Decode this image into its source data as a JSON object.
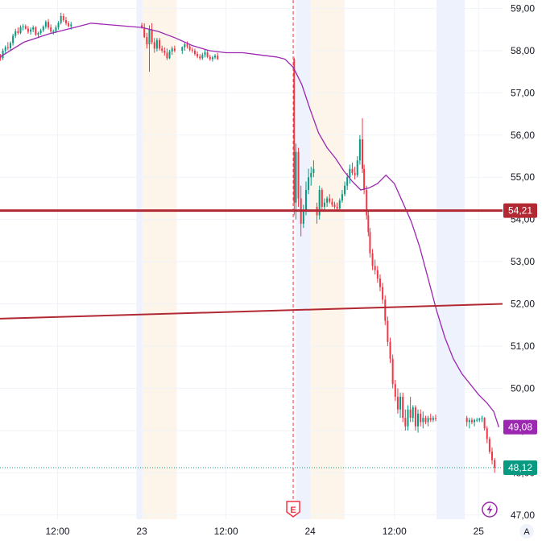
{
  "chart_data": {
    "type": "candlestick",
    "y_axis": {
      "ticks": [
        "59,00",
        "58,00",
        "57,00",
        "56,00",
        "55,00",
        "54,00",
        "53,00",
        "52,00",
        "51,00",
        "50,00",
        "49,00",
        "48,00",
        "47,00"
      ],
      "tick_values": [
        59,
        58,
        57,
        56,
        55,
        54,
        53,
        52,
        51,
        50,
        49,
        48,
        47
      ],
      "range": [
        46.9,
        59.2
      ]
    },
    "x_axis": {
      "labels": [
        "12:00",
        "23",
        "12:00",
        "24",
        "12:00",
        "25"
      ],
      "times": [
        0.5,
        1,
        1.5,
        2,
        2.5,
        3
      ],
      "range": [
        0.158,
        3.142
      ]
    },
    "sessions": [
      {
        "type": "premarket",
        "from": 0.968,
        "to": 1.004,
        "color": "#eef2fd"
      },
      {
        "type": "postmarket",
        "from": 1.004,
        "to": 1.208,
        "color": "#fdf5ea"
      },
      {
        "type": "premarket",
        "from": 1.915,
        "to": 2.0,
        "color": "#eef2fd"
      },
      {
        "type": "postmarket",
        "from": 2.0,
        "to": 2.204,
        "color": "#fdf5ea"
      },
      {
        "type": "premarket",
        "from": 2.75,
        "to": 2.918,
        "color": "#eef2fd"
      }
    ],
    "candles": [
      [
        0.16,
        57.85,
        57.92,
        57.76,
        57.82
      ],
      [
        0.175,
        57.82,
        58.05,
        57.78,
        58.0
      ],
      [
        0.19,
        58.0,
        58.12,
        57.95,
        58.08
      ],
      [
        0.205,
        58.08,
        58.2,
        58.01,
        58.06
      ],
      [
        0.22,
        58.06,
        58.22,
        58.0,
        58.18
      ],
      [
        0.235,
        58.18,
        58.4,
        58.12,
        58.35
      ],
      [
        0.25,
        58.35,
        58.52,
        58.3,
        58.46
      ],
      [
        0.265,
        58.46,
        58.55,
        58.38,
        58.42
      ],
      [
        0.28,
        58.42,
        58.6,
        58.39,
        58.56
      ],
      [
        0.295,
        58.56,
        58.63,
        58.48,
        58.58
      ],
      [
        0.31,
        58.58,
        58.62,
        58.5,
        58.52
      ],
      [
        0.325,
        58.52,
        58.58,
        58.4,
        58.45
      ],
      [
        0.34,
        58.45,
        58.55,
        58.38,
        58.5
      ],
      [
        0.355,
        58.5,
        58.6,
        58.44,
        58.55
      ],
      [
        0.37,
        58.55,
        58.58,
        58.35,
        58.38
      ],
      [
        0.385,
        58.38,
        58.45,
        58.3,
        58.42
      ],
      [
        0.4,
        58.42,
        58.52,
        58.38,
        58.48
      ],
      [
        0.415,
        58.48,
        58.6,
        58.44,
        58.57
      ],
      [
        0.43,
        58.57,
        58.72,
        58.52,
        58.68
      ],
      [
        0.445,
        58.68,
        58.75,
        58.5,
        58.55
      ],
      [
        0.46,
        58.55,
        58.62,
        58.42,
        58.45
      ],
      [
        0.475,
        58.45,
        58.5,
        58.38,
        58.46
      ],
      [
        0.49,
        58.46,
        58.6,
        58.42,
        58.55
      ],
      [
        0.505,
        58.55,
        58.7,
        58.5,
        58.66
      ],
      [
        0.52,
        58.66,
        58.9,
        58.62,
        58.82
      ],
      [
        0.535,
        58.82,
        58.88,
        58.68,
        58.72
      ],
      [
        0.55,
        58.72,
        58.8,
        58.6,
        58.65
      ],
      [
        0.565,
        58.65,
        58.7,
        58.55,
        58.58
      ],
      [
        0.58,
        58.58,
        58.68,
        58.5,
        58.62
      ],
      [
        1.0,
        58.6,
        58.66,
        58.52,
        58.55
      ],
      [
        1.015,
        58.55,
        58.65,
        58.3,
        58.32
      ],
      [
        1.03,
        58.32,
        58.42,
        58.05,
        58.15
      ],
      [
        1.045,
        58.15,
        58.6,
        57.5,
        58.5
      ],
      [
        1.06,
        58.5,
        58.65,
        58.15,
        58.2
      ],
      [
        1.075,
        58.2,
        58.3,
        57.95,
        58.05
      ],
      [
        1.09,
        58.05,
        58.3,
        57.98,
        58.25
      ],
      [
        1.105,
        58.25,
        58.3,
        58.0,
        58.05
      ],
      [
        1.12,
        58.05,
        58.12,
        57.95,
        58.0
      ],
      [
        1.135,
        58.0,
        58.08,
        57.88,
        57.95
      ],
      [
        1.15,
        57.95,
        58.05,
        57.78,
        57.82
      ],
      [
        1.165,
        57.82,
        58.02,
        57.8,
        57.98
      ],
      [
        1.18,
        57.98,
        58.1,
        57.9,
        58.05
      ],
      [
        1.195,
        58.05,
        58.12,
        57.96,
        58.0
      ],
      [
        1.24,
        58.0,
        58.1,
        57.92,
        58.08
      ],
      [
        1.255,
        58.08,
        58.2,
        58.0,
        58.15
      ],
      [
        1.27,
        58.15,
        58.22,
        58.05,
        58.1
      ],
      [
        1.285,
        58.1,
        58.15,
        57.98,
        58.02
      ],
      [
        1.3,
        58.02,
        58.08,
        57.95,
        58.0
      ],
      [
        1.315,
        58.0,
        58.05,
        57.88,
        57.92
      ],
      [
        1.33,
        57.92,
        57.98,
        57.82,
        57.86
      ],
      [
        1.345,
        57.86,
        57.92,
        57.78,
        57.82
      ],
      [
        1.36,
        57.82,
        57.95,
        57.78,
        57.9
      ],
      [
        1.375,
        57.9,
        58.02,
        57.84,
        57.96
      ],
      [
        1.39,
        57.96,
        58.0,
        57.82,
        57.85
      ],
      [
        1.405,
        57.85,
        57.9,
        57.76,
        57.8
      ],
      [
        1.42,
        57.8,
        57.88,
        57.74,
        57.84
      ],
      [
        1.435,
        57.84,
        57.92,
        57.8,
        57.88
      ],
      [
        1.45,
        57.88,
        57.95,
        57.78,
        57.8
      ],
      [
        1.905,
        57.8,
        57.84,
        54.1,
        54.4
      ],
      [
        1.915,
        54.4,
        55.8,
        54.0,
        55.6
      ],
      [
        1.93,
        55.6,
        55.7,
        54.3,
        54.5
      ],
      [
        1.945,
        54.5,
        54.8,
        53.6,
        53.9
      ],
      [
        1.96,
        53.9,
        54.35,
        53.8,
        54.2
      ],
      [
        1.975,
        54.2,
        54.9,
        54.1,
        54.7
      ],
      [
        1.99,
        54.7,
        55.2,
        54.6,
        55.0
      ],
      [
        2.005,
        55.0,
        55.25,
        54.8,
        55.1
      ],
      [
        2.02,
        55.1,
        55.4,
        55.0,
        55.2
      ],
      [
        2.04,
        54.3,
        54.4,
        53.9,
        54.1
      ],
      [
        2.055,
        54.1,
        54.8,
        54.0,
        54.7
      ],
      [
        2.07,
        54.7,
        54.75,
        54.2,
        54.3
      ],
      [
        2.085,
        54.3,
        54.5,
        54.2,
        54.4
      ],
      [
        2.1,
        54.4,
        54.55,
        54.3,
        54.5
      ],
      [
        2.115,
        54.5,
        54.6,
        54.38,
        54.42
      ],
      [
        2.13,
        54.42,
        54.5,
        54.3,
        54.35
      ],
      [
        2.145,
        54.35,
        54.42,
        54.25,
        54.3
      ],
      [
        2.16,
        54.3,
        54.4,
        54.22,
        54.26
      ],
      [
        2.175,
        54.26,
        54.5,
        54.2,
        54.45
      ],
      [
        2.19,
        54.45,
        54.7,
        54.4,
        54.6
      ],
      [
        2.205,
        54.6,
        54.9,
        54.55,
        54.8
      ],
      [
        2.22,
        54.8,
        55.1,
        54.7,
        55.0
      ],
      [
        2.235,
        55.0,
        55.3,
        54.85,
        55.2
      ],
      [
        2.25,
        55.2,
        55.35,
        55.05,
        55.1
      ],
      [
        2.265,
        55.1,
        55.25,
        54.95,
        55.05
      ],
      [
        2.28,
        55.05,
        55.5,
        55.0,
        55.4
      ],
      [
        2.295,
        55.4,
        56.0,
        55.3,
        55.9
      ],
      [
        2.31,
        55.9,
        56.4,
        55.1,
        55.2
      ],
      [
        2.32,
        55.2,
        55.3,
        54.6,
        54.7
      ],
      [
        2.335,
        54.7,
        54.8,
        54.0,
        54.1
      ],
      [
        2.345,
        54.1,
        54.2,
        53.6,
        53.7
      ],
      [
        2.355,
        53.7,
        53.8,
        53.1,
        53.2
      ],
      [
        2.37,
        53.2,
        53.3,
        52.8,
        52.9
      ],
      [
        2.385,
        52.9,
        53.05,
        52.7,
        52.8
      ],
      [
        2.4,
        52.8,
        52.9,
        52.5,
        52.6
      ],
      [
        2.415,
        52.6,
        52.7,
        52.3,
        52.4
      ],
      [
        2.43,
        52.4,
        52.5,
        52.0,
        52.1
      ],
      [
        2.445,
        52.1,
        52.2,
        51.5,
        51.6
      ],
      [
        2.46,
        51.6,
        51.7,
        51.0,
        51.1
      ],
      [
        2.475,
        51.1,
        51.2,
        50.6,
        50.7
      ],
      [
        2.49,
        50.7,
        50.8,
        50.0,
        50.1
      ],
      [
        2.505,
        50.1,
        50.2,
        49.7,
        49.8
      ],
      [
        2.52,
        49.8,
        50.0,
        49.4,
        49.5
      ],
      [
        2.535,
        49.5,
        49.9,
        49.3,
        49.8
      ],
      [
        2.55,
        49.8,
        49.9,
        49.2,
        49.3
      ],
      [
        2.565,
        49.3,
        49.5,
        49.0,
        49.1
      ],
      [
        2.58,
        49.1,
        49.6,
        49.0,
        49.5
      ],
      [
        2.595,
        49.5,
        49.8,
        49.2,
        49.3
      ],
      [
        2.61,
        49.3,
        49.6,
        49.2,
        49.55
      ],
      [
        2.625,
        49.55,
        49.6,
        49.0,
        49.1
      ],
      [
        2.64,
        49.1,
        49.5,
        48.95,
        49.4
      ],
      [
        2.655,
        49.4,
        49.5,
        49.1,
        49.2
      ],
      [
        2.67,
        49.2,
        49.45,
        49.05,
        49.3
      ],
      [
        2.685,
        49.3,
        49.35,
        49.15,
        49.2
      ],
      [
        2.7,
        49.2,
        49.35,
        49.1,
        49.3
      ],
      [
        2.715,
        49.3,
        49.4,
        49.2,
        49.25
      ],
      [
        2.73,
        49.25,
        49.35,
        49.2,
        49.3
      ],
      [
        2.745,
        49.3,
        49.38,
        49.22,
        49.28
      ],
      [
        2.93,
        49.3,
        49.35,
        49.1,
        49.2
      ],
      [
        2.945,
        49.2,
        49.3,
        49.05,
        49.25
      ],
      [
        2.96,
        49.25,
        49.3,
        49.15,
        49.2
      ],
      [
        2.975,
        49.2,
        49.28,
        49.1,
        49.25
      ],
      [
        2.99,
        49.25,
        49.3,
        49.2,
        49.25
      ],
      [
        3.005,
        49.25,
        49.3,
        49.2,
        49.28
      ],
      [
        3.02,
        49.28,
        49.35,
        49.2,
        49.3
      ],
      [
        3.035,
        49.3,
        49.32,
        49.0,
        49.05
      ],
      [
        3.05,
        49.05,
        49.1,
        48.7,
        48.8
      ],
      [
        3.065,
        48.8,
        48.85,
        48.45,
        48.5
      ],
      [
        3.08,
        48.5,
        48.6,
        48.2,
        48.3
      ],
      [
        3.095,
        48.3,
        48.35,
        48.0,
        48.12
      ]
    ],
    "moving_average": {
      "color": "#9c27b0",
      "points": [
        [
          0.158,
          57.85
        ],
        [
          0.3,
          58.2
        ],
        [
          0.45,
          58.4
        ],
        [
          0.6,
          58.55
        ],
        [
          0.7,
          58.65
        ],
        [
          0.85,
          58.6
        ],
        [
          1.0,
          58.55
        ],
        [
          1.1,
          58.45
        ],
        [
          1.2,
          58.3
        ],
        [
          1.3,
          58.12
        ],
        [
          1.4,
          58.0
        ],
        [
          1.5,
          57.95
        ],
        [
          1.6,
          57.95
        ],
        [
          1.7,
          57.9
        ],
        [
          1.8,
          57.85
        ],
        [
          1.85,
          57.8
        ],
        [
          1.9,
          57.6
        ],
        [
          1.95,
          57.2
        ],
        [
          2.0,
          56.6
        ],
        [
          2.05,
          56.05
        ],
        [
          2.1,
          55.7
        ],
        [
          2.15,
          55.45
        ],
        [
          2.2,
          55.15
        ],
        [
          2.25,
          54.9
        ],
        [
          2.3,
          54.7
        ],
        [
          2.35,
          54.75
        ],
        [
          2.4,
          54.85
        ],
        [
          2.45,
          55.05
        ],
        [
          2.5,
          54.85
        ],
        [
          2.55,
          54.4
        ],
        [
          2.6,
          53.95
        ],
        [
          2.65,
          53.35
        ],
        [
          2.7,
          52.6
        ],
        [
          2.75,
          51.85
        ],
        [
          2.8,
          51.2
        ],
        [
          2.85,
          50.7
        ],
        [
          2.9,
          50.35
        ],
        [
          2.95,
          50.1
        ],
        [
          3.0,
          49.85
        ],
        [
          3.05,
          49.65
        ],
        [
          3.09,
          49.45
        ],
        [
          3.12,
          49.08
        ]
      ]
    },
    "horizontal_lines": [
      {
        "value": 54.21,
        "color": "#b22833",
        "label": "54,21"
      }
    ],
    "trend_line": {
      "from": [
        0.158,
        51.65
      ],
      "to": [
        3.142,
        52.0
      ],
      "color": "#b22833"
    },
    "earnings_marker": {
      "time": 1.899,
      "label": "E"
    },
    "price_badges": [
      {
        "label": "54,21",
        "value": 54.21,
        "color": "#b22833"
      },
      {
        "label": "49,08",
        "value": 49.08,
        "color": "#9c27b0"
      },
      {
        "label": "48,12",
        "value": 48.12,
        "color": "#089981"
      }
    ],
    "last_price": {
      "value": 48.12,
      "color": "#089981"
    },
    "colors": {
      "up": "#089981",
      "down": "#f23645",
      "grid": "#f0f3fa",
      "axis_text": "#131722"
    }
  },
  "ui": {
    "auto_scale_label": "A",
    "lightning_icon": "lightning-icon",
    "earnings_icon": "earnings-flag-icon"
  }
}
